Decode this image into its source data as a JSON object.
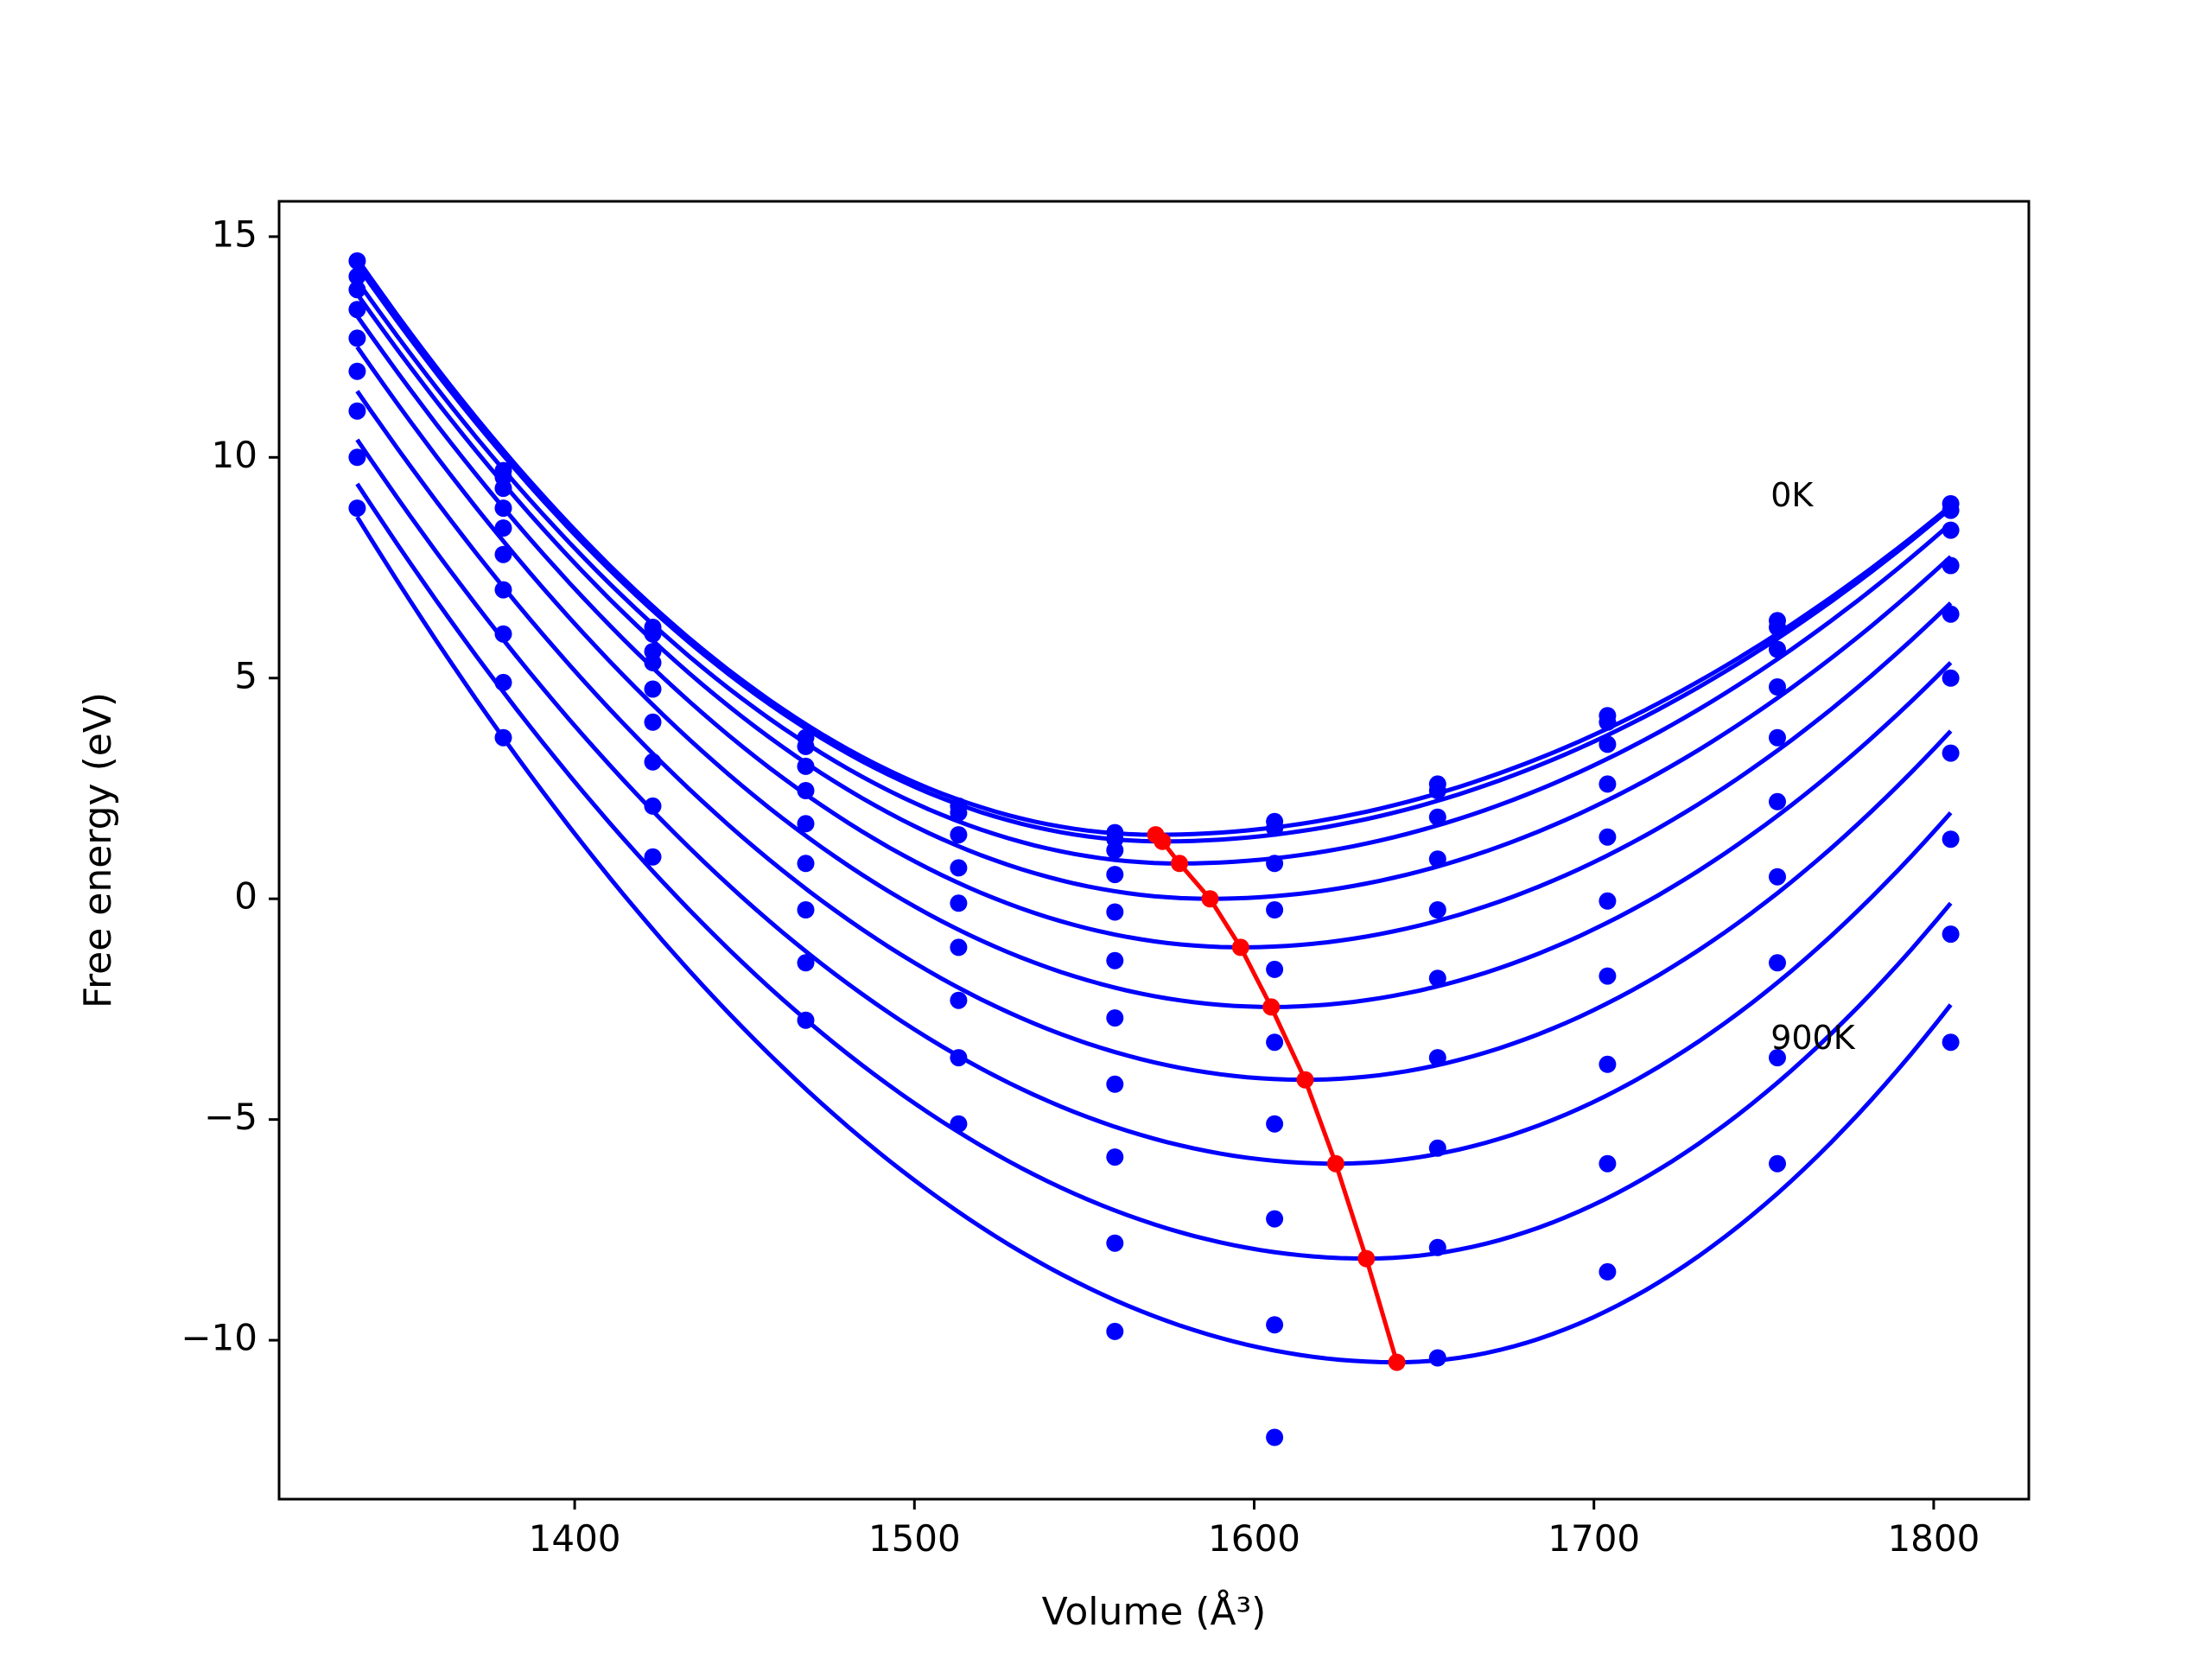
{
  "chart_data": {
    "type": "line",
    "xlabel": "Volume (Å³)",
    "ylabel": "Free energy (eV)",
    "xlim": [
      1313,
      1828
    ],
    "ylim": [
      -13.6,
      15.8
    ],
    "xticks": [
      1400,
      1500,
      1600,
      1700,
      1800
    ],
    "yticks": [
      -10,
      -5,
      0,
      5,
      10,
      15
    ],
    "xtick_labels": [
      "1400",
      "1500",
      "1600",
      "1700",
      "1800"
    ],
    "ytick_labels": [
      "−10",
      "−5",
      "0",
      "5",
      "10",
      "15"
    ],
    "grid": false,
    "legend": "none",
    "colors": {
      "curves": "#0000ff",
      "minima": "#ff0000",
      "axes": "#000000"
    },
    "annotations": [
      {
        "text": "0K",
        "x": 1752,
        "y": 9.1
      },
      {
        "text": "900K",
        "x": 1752,
        "y": -3.2
      }
    ],
    "volumes": [
      1336,
      1379,
      1423,
      1468,
      1513,
      1559,
      1606,
      1654,
      1704,
      1754,
      1805
    ],
    "series": [
      {
        "fit": {
          "v0": 1571,
          "e0": 1.45,
          "left": 14.5,
          "right": 8.9
        },
        "points": [
          14.45,
          9.7,
          6.15,
          3.65,
          2.1,
          1.5,
          1.75,
          2.6,
          4.15,
          6.3,
          8.95
        ]
      },
      {
        "fit": {
          "v0": 1573,
          "e0": 1.3,
          "left": 14.35,
          "right": 8.85
        },
        "points": [
          14.1,
          9.55,
          6.0,
          3.45,
          1.95,
          1.35,
          1.6,
          2.45,
          4.0,
          6.15,
          8.8
        ]
      },
      {
        "fit": {
          "v0": 1578,
          "e0": 0.8,
          "left": 14.0,
          "right": 8.5
        },
        "points": [
          13.8,
          9.3,
          5.6,
          3.0,
          1.45,
          1.1,
          0.8,
          1.85,
          3.5,
          5.65,
          8.35
        ]
      },
      {
        "fit": {
          "v0": 1587,
          "e0": 0.0,
          "left": 13.7,
          "right": 7.75
        },
        "points": [
          13.35,
          8.85,
          5.35,
          2.45,
          0.7,
          0.55,
          -0.25,
          0.9,
          2.6,
          4.8,
          7.55
        ]
      },
      {
        "fit": {
          "v0": 1596,
          "e0": -1.1,
          "left": 13.2,
          "right": 6.7
        },
        "points": [
          12.7,
          8.4,
          4.75,
          1.7,
          -0.1,
          -0.3,
          -1.6,
          -0.25,
          1.4,
          3.65,
          6.45
        ]
      },
      {
        "fit": {
          "v0": 1605,
          "e0": -2.45,
          "left": 12.5,
          "right": 5.35
        },
        "points": [
          11.95,
          7.8,
          4.0,
          0.8,
          -1.1,
          -1.4,
          -3.25,
          -1.8,
          -0.05,
          2.2,
          5.0
        ]
      },
      {
        "fit": {
          "v0": 1615,
          "e0": -4.1,
          "left": 11.5,
          "right": 3.8
        },
        "points": [
          11.05,
          7.0,
          3.1,
          -0.25,
          -2.3,
          -2.7,
          -5.1,
          -3.6,
          -1.75,
          0.5,
          3.3
        ]
      },
      {
        "fit": {
          "v0": 1624,
          "e0": -6.0,
          "left": 10.4,
          "right": 1.95
        },
        "points": [
          10.0,
          6.0,
          2.1,
          -1.45,
          -3.6,
          -4.2,
          -7.25,
          -5.65,
          -3.75,
          -1.45,
          1.35
        ]
      },
      {
        "fit": {
          "v0": 1633,
          "e0": -8.15,
          "left": 9.4,
          "right": -0.1
        },
        "points": [
          8.85,
          4.9,
          0.95,
          -2.75,
          -5.1,
          -5.85,
          -9.65,
          -7.9,
          -6.0,
          -3.6,
          -0.8
        ]
      },
      {
        "fit": {
          "v0": 1642,
          "e0": -10.5,
          "left": 8.65,
          "right": -2.4
        },
        "points": [
          null,
          3.65,
          null,
          null,
          null,
          -7.8,
          -12.2,
          -10.4,
          -8.45,
          -6.0,
          -3.25
        ]
      },
      {
        "fit": null,
        "points": [
          null,
          null,
          null,
          null,
          null,
          -9.8,
          null,
          null,
          null,
          null,
          null
        ]
      }
    ],
    "minima_line": {
      "x": [
        1571,
        1573,
        1578,
        1587,
        1596,
        1605,
        1615,
        1624,
        1633,
        1642
      ],
      "y": [
        1.45,
        1.3,
        0.8,
        0.0,
        -1.1,
        -2.45,
        -4.1,
        -6.0,
        -8.15,
        -10.5
      ]
    }
  }
}
